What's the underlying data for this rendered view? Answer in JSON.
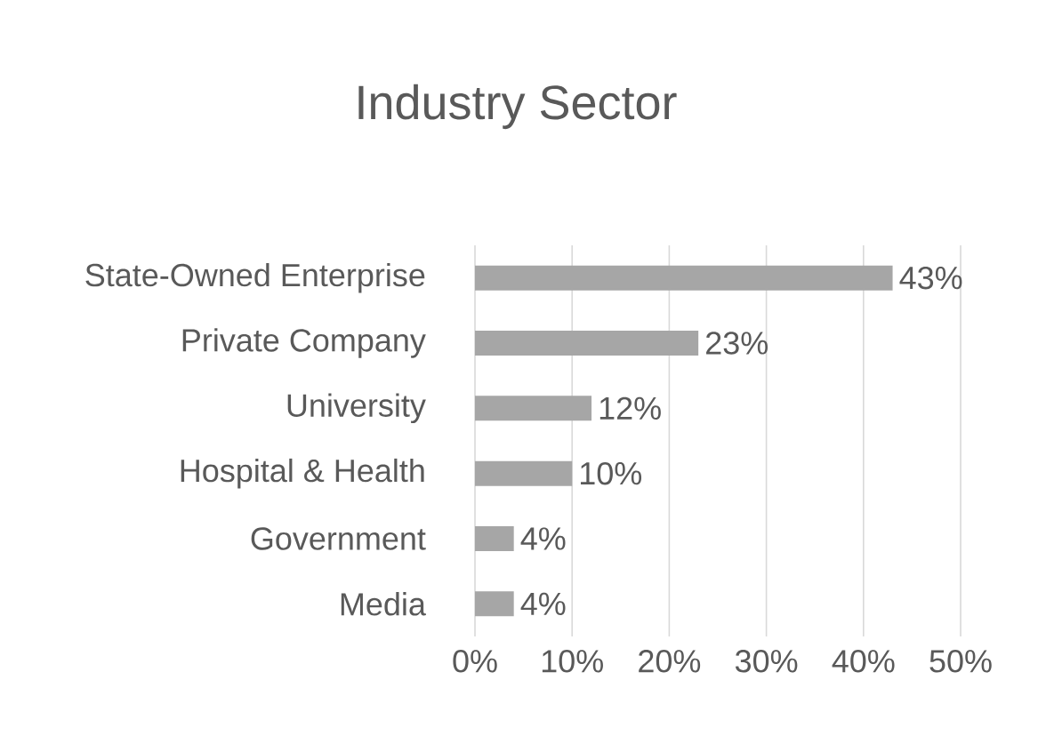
{
  "chart_data": {
    "type": "bar",
    "orientation": "horizontal",
    "title": "Industry Sector",
    "categories": [
      "State-Owned Enterprise",
      "Private Company",
      "University",
      "Hospital & Health",
      "Government",
      "Media"
    ],
    "values": [
      43,
      23,
      12,
      10,
      4,
      4
    ],
    "value_labels": [
      "43%",
      "23%",
      "12%",
      "10%",
      "4%",
      "4%"
    ],
    "color": "#a6a6a6",
    "xlim": [
      0,
      50
    ],
    "xticks": [
      {
        "value": 0,
        "label": "0%"
      },
      {
        "value": 10,
        "label": "10%"
      },
      {
        "value": 20,
        "label": "20%"
      },
      {
        "value": 30,
        "label": "30%"
      },
      {
        "value": 40,
        "label": "40%"
      },
      {
        "value": 50,
        "label": "50%"
      }
    ],
    "grid": "x"
  }
}
